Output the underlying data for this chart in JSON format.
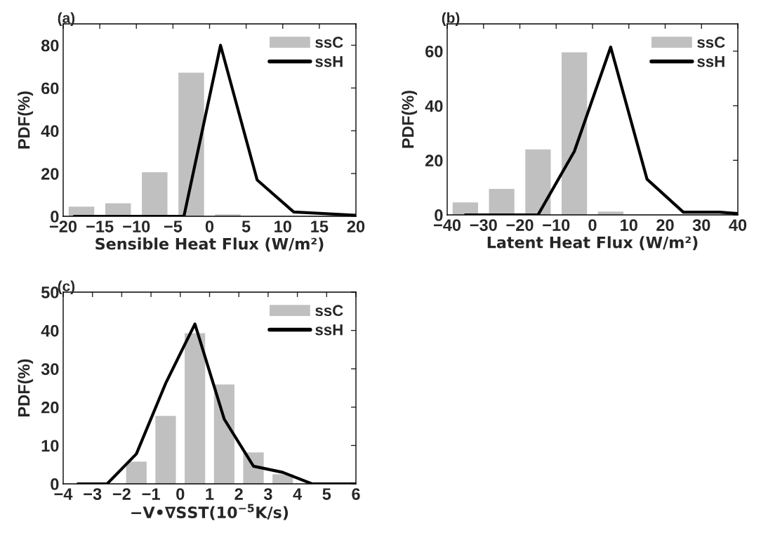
{
  "chart_data": [
    {
      "type": "bar",
      "title": "(a)",
      "xlabel": "Sensible Heat Flux (W/m²)",
      "ylabel": "PDF(%)",
      "xlim": [
        -20,
        20
      ],
      "xticks": [
        -20,
        -15,
        -10,
        -5,
        0,
        5,
        10,
        15,
        20
      ],
      "ylim": [
        0,
        90
      ],
      "yticks": [
        0,
        20,
        40,
        60,
        80
      ],
      "legend": "top right",
      "grid": false,
      "series": [
        {
          "name": "ssC",
          "type": "bar",
          "color": "#c0c0c0",
          "x": [
            -17.5,
            -12.5,
            -7.5,
            -2.5,
            2.5
          ],
          "values": [
            4.5,
            6.1,
            20.6,
            67.2,
            0.9
          ]
        },
        {
          "name": "ssH",
          "type": "line",
          "color": "#000000",
          "x": [
            -18.5,
            -13.5,
            -8.5,
            -3.5,
            1.5,
            6.5,
            11.5,
            20
          ],
          "values": [
            0,
            0,
            0,
            0,
            80,
            17,
            2,
            0.5
          ]
        }
      ]
    },
    {
      "type": "bar",
      "title": "(b)",
      "xlabel": "Latent Heat Flux (W/m²)",
      "ylabel": "PDF(%)",
      "xlim": [
        -40,
        40
      ],
      "xticks": [
        -40,
        -30,
        -20,
        -10,
        0,
        10,
        20,
        30,
        40
      ],
      "ylim": [
        0,
        70
      ],
      "yticks": [
        0,
        20,
        40,
        60
      ],
      "legend": "top right",
      "grid": false,
      "series": [
        {
          "name": "ssC",
          "type": "bar",
          "color": "#c0c0c0",
          "x": [
            -35,
            -25,
            -15,
            -5,
            5
          ],
          "values": [
            4.6,
            9.5,
            24,
            59.6,
            1.2
          ]
        },
        {
          "name": "ssH",
          "type": "line",
          "color": "#000000",
          "x": [
            -35,
            -25,
            -15,
            -5,
            5,
            15,
            25,
            35,
            40
          ],
          "values": [
            0,
            0,
            0,
            23.3,
            61.5,
            13.1,
            1,
            1,
            0.5
          ]
        }
      ]
    },
    {
      "type": "bar",
      "title": "(c)",
      "xlabel": "−V•∇SST(10$^{−5}$K/s)",
      "ylabel": "PDF(%)",
      "xlim": [
        -4,
        6
      ],
      "xticks": [
        -4,
        -3,
        -2,
        -1,
        0,
        1,
        2,
        3,
        4,
        5,
        6
      ],
      "ylim": [
        0,
        50
      ],
      "yticks": [
        0,
        10,
        20,
        30,
        40,
        50
      ],
      "legend": "top right",
      "grid": false,
      "series": [
        {
          "name": "ssC",
          "type": "bar",
          "color": "#c0c0c0",
          "x": [
            -1.5,
            -0.5,
            0.5,
            1.5,
            2.5,
            3.5
          ],
          "values": [
            5.8,
            17.7,
            39.3,
            25.9,
            8.2,
            2.5
          ]
        },
        {
          "name": "ssH",
          "type": "line",
          "color": "#000000",
          "x": [
            -3.5,
            -2.5,
            -1.5,
            -0.5,
            0.5,
            1.5,
            2.5,
            3.5,
            4.5,
            5.5,
            6
          ],
          "values": [
            0,
            0,
            7.8,
            26.2,
            41.7,
            16.9,
            4.6,
            3.0,
            0,
            0,
            0
          ]
        }
      ]
    }
  ]
}
